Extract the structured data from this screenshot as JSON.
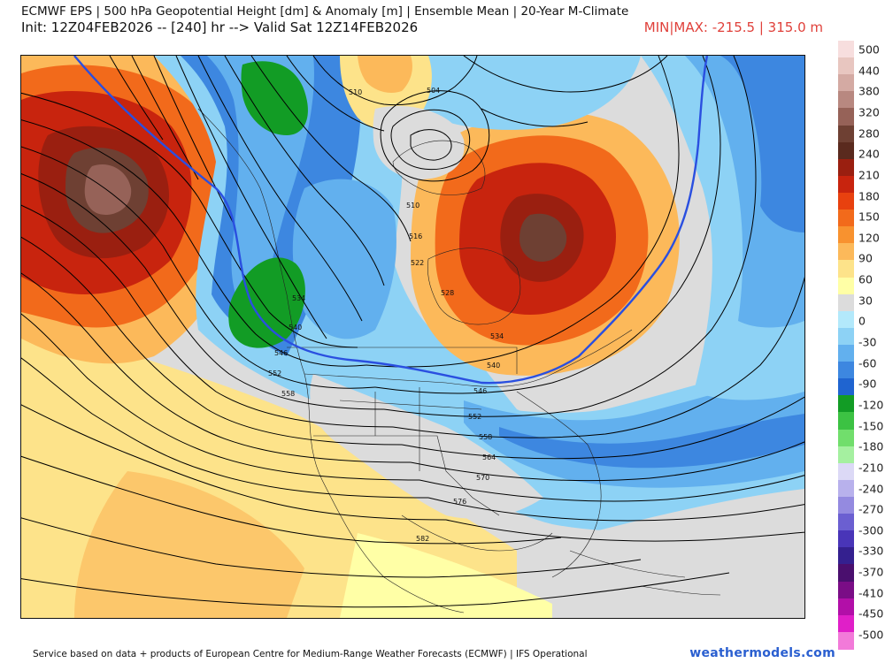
{
  "header": {
    "title": "ECMWF EPS | 500 hPa Geopotential Height [dm] & Anomaly [m] | Ensemble Mean | 20-Year M-Climate",
    "init": "Init: 12Z04FEB2026 -- [240] hr --> Valid Sat 12Z14FEB2026",
    "minmax": "MIN|MAX: -215.5 | 315.0 m"
  },
  "colorbar": {
    "labels": [
      "500",
      "440",
      "380",
      "320",
      "280",
      "240",
      "210",
      "180",
      "150",
      "120",
      "90",
      "60",
      "30",
      "0",
      "-30",
      "-60",
      "-90",
      "-120",
      "-150",
      "-180",
      "-210",
      "-240",
      "-270",
      "-300",
      "-330",
      "-370",
      "-410",
      "-450",
      "-500"
    ],
    "colors": [
      "#f7dede",
      "#e8c6c0",
      "#d4aaa3",
      "#b88880",
      "#966258",
      "#6e4033",
      "#5a2a1e",
      "#9a1f10",
      "#c8240e",
      "#e8410f",
      "#f26a1b",
      "#f8922f",
      "#fcb95a",
      "#fde38a",
      "#ffffa6",
      "#dcdcdc",
      "#b3e9fb",
      "#8dd2f5",
      "#62b0ee",
      "#3d87e0",
      "#1f64d0",
      "#129c25",
      "#3cc243",
      "#71de6c",
      "#a5f0a0",
      "#dcd9f6",
      "#b8b1ec",
      "#948ae0",
      "#6b5fd1",
      "#4935b8",
      "#34208f",
      "#4a0f6e",
      "#7a0d86",
      "#b20fa8",
      "#e01fc8",
      "#f27ad9"
    ]
  },
  "contours": {
    "labels": [
      "510",
      "504",
      "510",
      "516",
      "522",
      "528",
      "534",
      "540",
      "534",
      "540",
      "546",
      "552",
      "558",
      "546",
      "552",
      "558",
      "564",
      "570",
      "576",
      "582"
    ]
  },
  "footer": {
    "service": "Service based on data + products of European Centre for Medium-Range Weather Forecasts (ECMWF) | IFS Operational",
    "brand": "weathermodels.com"
  }
}
